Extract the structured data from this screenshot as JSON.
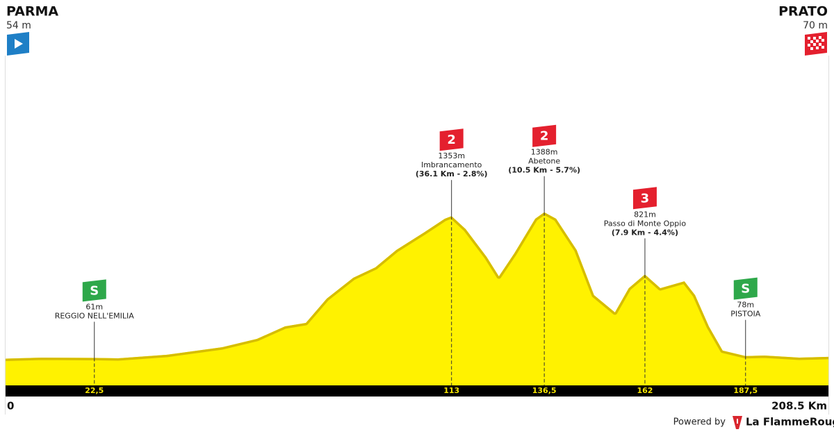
{
  "chart_data": {
    "type": "area",
    "start": {
      "name": "PARMA",
      "altitude": "54 m"
    },
    "finish": {
      "name": "PRATO",
      "altitude": "70 m"
    },
    "x_start_label": "0",
    "x_end_label": "208.5 Km",
    "x": [
      0,
      9.2,
      22.5,
      28.5,
      40.9,
      54.9,
      63.7,
      70.8,
      76.1,
      81.4,
      88.1,
      93.7,
      99,
      106,
      111.3,
      113,
      116.6,
      121.9,
      125,
      128.9,
      134.2,
      136.5,
      139.5,
      144.7,
      149.1,
      154.4,
      157.9,
      162,
      165.9,
      172,
      174.7,
      178.2,
      181.7,
      187.5,
      192.3,
      201.1,
      208.5
    ],
    "values": [
      54,
      63,
      61,
      57,
      89,
      158,
      234,
      348,
      380,
      601,
      791,
      886,
      1044,
      1203,
      1329,
      1353,
      1234,
      981,
      804,
      1013,
      1329,
      1388,
      1329,
      1044,
      633,
      475,
      696,
      821,
      696,
      759,
      633,
      348,
      127,
      78,
      82,
      63,
      70
    ],
    "color": "#fff200",
    "ridge_color": "#d6bd00",
    "xlim": [
      0,
      208.5
    ],
    "ylim": [
      0,
      1500
    ],
    "xticks": [
      {
        "value": 22.5,
        "label": "22,5"
      },
      113,
      {
        "value": 136.5,
        "label": "136,5"
      },
      162,
      {
        "value": 187.5,
        "label": "187,5"
      }
    ],
    "annotations": [
      {
        "kind": "sprint",
        "badge": "S",
        "km": 22.5,
        "elevation": "61m",
        "name": "REGGIO NELL'EMILIA"
      },
      {
        "kind": "climb",
        "badge": "2",
        "km": 113,
        "elevation": "1353m",
        "name": "Imbrancamento",
        "detail": "(36.1 Km - 2.8%)"
      },
      {
        "kind": "climb",
        "badge": "2",
        "km": 136.5,
        "elevation": "1388m",
        "name": "Abetone",
        "detail": "(10.5 Km - 5.7%)"
      },
      {
        "kind": "climb",
        "badge": "3",
        "km": 162,
        "elevation": "821m",
        "name": "Passo di Monte Oppio",
        "detail": "(7.9 Km - 4.4%)"
      },
      {
        "kind": "sprint",
        "badge": "S",
        "km": 187.5,
        "elevation": "78m",
        "name": "PISTOIA"
      }
    ]
  },
  "footer": {
    "powered_by": "Powered by",
    "brand": "La FlammeRouge"
  }
}
